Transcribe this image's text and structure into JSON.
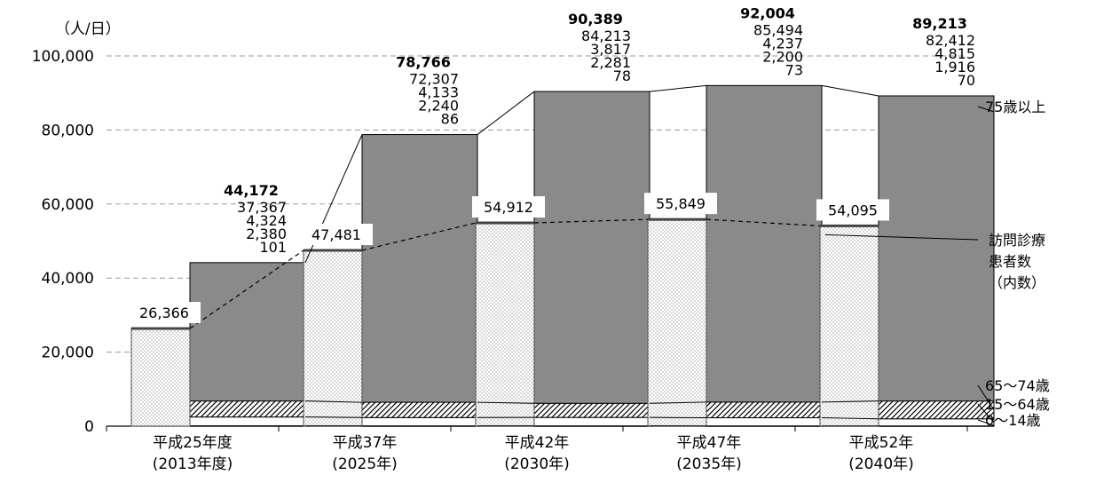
{
  "chart_data": {
    "type": "bar",
    "unit_label": "（人/日）",
    "ylim": [
      0,
      100000
    ],
    "yticks": [
      "0",
      "20,000",
      "40,000",
      "60,000",
      "80,000",
      "100,000"
    ],
    "categories": [
      [
        "平成25年度",
        "(2013年度)"
      ],
      [
        "平成37年",
        "(2025年)"
      ],
      [
        "平成42年",
        "(2030年)"
      ],
      [
        "平成47年",
        "(2035年)"
      ],
      [
        "平成52年",
        "(2040年)"
      ]
    ],
    "series": [
      {
        "name": "0～14歳",
        "values": [
          101,
          86,
          78,
          73,
          70
        ]
      },
      {
        "name": "15～64歳",
        "values": [
          2380,
          2240,
          2281,
          2200,
          1916
        ]
      },
      {
        "name": "65～74歳",
        "values": [
          4324,
          4133,
          3817,
          4237,
          4815
        ]
      },
      {
        "name": "75歳以上",
        "values": [
          37367,
          72307,
          84213,
          85494,
          82412
        ]
      }
    ],
    "totals": [
      44172,
      78766,
      90389,
      92004,
      89213
    ],
    "home_visit": {
      "name_lines": [
        "訪問診療",
        "患者数",
        "（内数）"
      ],
      "values": [
        26366,
        47481,
        54912,
        55849,
        54095
      ]
    },
    "colors": {
      "over75": "#8a8a8a",
      "age65_74_hatch": "#000000",
      "home_visit_dots": "#777777",
      "grid": "#9a9a9a"
    },
    "grid": true
  }
}
